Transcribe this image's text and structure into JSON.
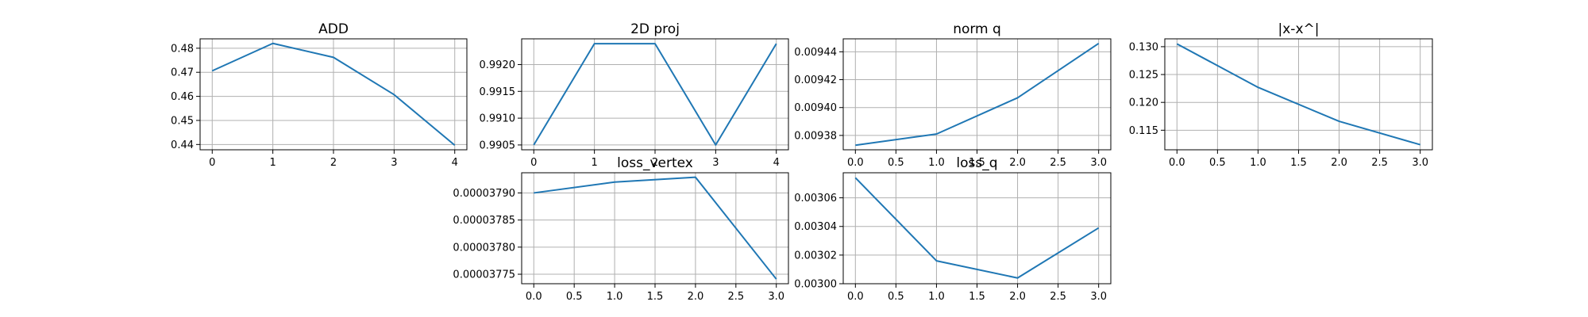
{
  "figure": {
    "background": "#ffffff",
    "line_color": "#1f77b4",
    "grid_color": "#b0b0b0",
    "axis_color": "#000000"
  },
  "chart_data": [
    {
      "id": "add",
      "type": "line",
      "title": "ADD",
      "xlabel": "",
      "ylabel": "",
      "grid": true,
      "x": [
        0,
        1,
        2,
        3,
        4
      ],
      "series": [
        {
          "values": [
            0.4706,
            0.482,
            0.4762,
            0.4607,
            0.4397
          ]
        }
      ],
      "xlim": [
        -0.2,
        4.2
      ],
      "ylim": [
        0.4378,
        0.4839
      ],
      "xticks": [
        0,
        1,
        2,
        3,
        4
      ],
      "xtick_labels": [
        "0",
        "1",
        "2",
        "3",
        "4"
      ],
      "yticks": [
        0.44,
        0.45,
        0.46,
        0.47,
        0.48
      ],
      "ytick_labels": [
        "0.44",
        "0.45",
        "0.46",
        "0.47",
        "0.48"
      ]
    },
    {
      "id": "proj2d",
      "type": "line",
      "title": "2D proj",
      "xlabel": "",
      "ylabel": "",
      "grid": true,
      "x": [
        0,
        1,
        2,
        3,
        4
      ],
      "series": [
        {
          "values": [
            0.9905,
            0.99239,
            0.99239,
            0.9905,
            0.99239
          ]
        }
      ],
      "xlim": [
        -0.2,
        4.2
      ],
      "ylim": [
        0.99041,
        0.99248
      ],
      "xticks": [
        0,
        1,
        2,
        3,
        4
      ],
      "xtick_labels": [
        "0",
        "1",
        "2",
        "3",
        "4"
      ],
      "yticks": [
        0.9905,
        0.991,
        0.9915,
        0.992
      ],
      "ytick_labels": [
        "0.9905",
        "0.9910",
        "0.9915",
        "0.9920"
      ]
    },
    {
      "id": "normq",
      "type": "line",
      "title": "norm q",
      "xlabel": "",
      "ylabel": "",
      "grid": true,
      "x": [
        0,
        1,
        2,
        3
      ],
      "series": [
        {
          "values": [
            0.009373,
            0.009381,
            0.009407,
            0.009446
          ]
        }
      ],
      "xlim": [
        -0.15,
        3.15
      ],
      "ylim": [
        0.0093697,
        0.0094493
      ],
      "xticks": [
        0,
        0.5,
        1,
        1.5,
        2,
        2.5,
        3
      ],
      "xtick_labels": [
        "0.0",
        "0.5",
        "1.0",
        "1.5",
        "2.0",
        "2.5",
        "3.0"
      ],
      "yticks": [
        0.00938,
        0.0094,
        0.00942,
        0.00944
      ],
      "ytick_labels": [
        "0.00938",
        "0.00940",
        "0.00942",
        "0.00944"
      ]
    },
    {
      "id": "xdiff",
      "type": "line",
      "title": "|x-x^|",
      "xlabel": "",
      "ylabel": "",
      "grid": true,
      "x": [
        0,
        1,
        2,
        3
      ],
      "series": [
        {
          "values": [
            0.1305,
            0.1227,
            0.1166,
            0.1124
          ]
        }
      ],
      "xlim": [
        -0.15,
        3.15
      ],
      "ylim": [
        0.11149,
        0.13141
      ],
      "xticks": [
        0,
        0.5,
        1,
        1.5,
        2,
        2.5,
        3
      ],
      "xtick_labels": [
        "0.0",
        "0.5",
        "1.0",
        "1.5",
        "2.0",
        "2.5",
        "3.0"
      ],
      "yticks": [
        0.115,
        0.12,
        0.125,
        0.13
      ],
      "ytick_labels": [
        "0.115",
        "0.120",
        "0.125",
        "0.130"
      ]
    },
    {
      "id": "lossvertex",
      "type": "line",
      "title": "loss_vertex",
      "xlabel": "",
      "ylabel": "",
      "grid": true,
      "x": [
        0,
        1,
        2,
        3
      ],
      "series": [
        {
          "values": [
            3.79e-05,
            3.792e-05,
            3.7929e-05,
            3.7741e-05
          ]
        }
      ],
      "xlim": [
        -0.15,
        3.15
      ],
      "ylim": [
        3.77325e-05,
        3.79372e-05
      ],
      "xticks": [
        0,
        0.5,
        1,
        1.5,
        2,
        2.5,
        3
      ],
      "xtick_labels": [
        "0.0",
        "0.5",
        "1.0",
        "1.5",
        "2.0",
        "2.5",
        "3.0"
      ],
      "yticks": [
        3.775e-05,
        3.78e-05,
        3.785e-05,
        3.79e-05
      ],
      "ytick_labels": [
        "0.00003775",
        "0.00003780",
        "0.00003785",
        "0.00003790"
      ]
    },
    {
      "id": "lossq",
      "type": "line",
      "title": "loss_q",
      "xlabel": "",
      "ylabel": "",
      "grid": true,
      "x": [
        0,
        1,
        2,
        3
      ],
      "series": [
        {
          "values": [
            0.003074,
            0.003016,
            0.003004,
            0.003039
          ]
        }
      ],
      "xlim": [
        -0.15,
        3.15
      ],
      "ylim": [
        0.003,
        0.0030775
      ],
      "xticks": [
        0,
        0.5,
        1,
        1.5,
        2,
        2.5,
        3
      ],
      "xtick_labels": [
        "0.0",
        "0.5",
        "1.0",
        "1.5",
        "2.0",
        "2.5",
        "3.0"
      ],
      "yticks": [
        0.003,
        0.00302,
        0.00304,
        0.00306
      ],
      "ytick_labels": [
        "0.00300",
        "0.00302",
        "0.00304",
        "0.00306"
      ]
    }
  ]
}
